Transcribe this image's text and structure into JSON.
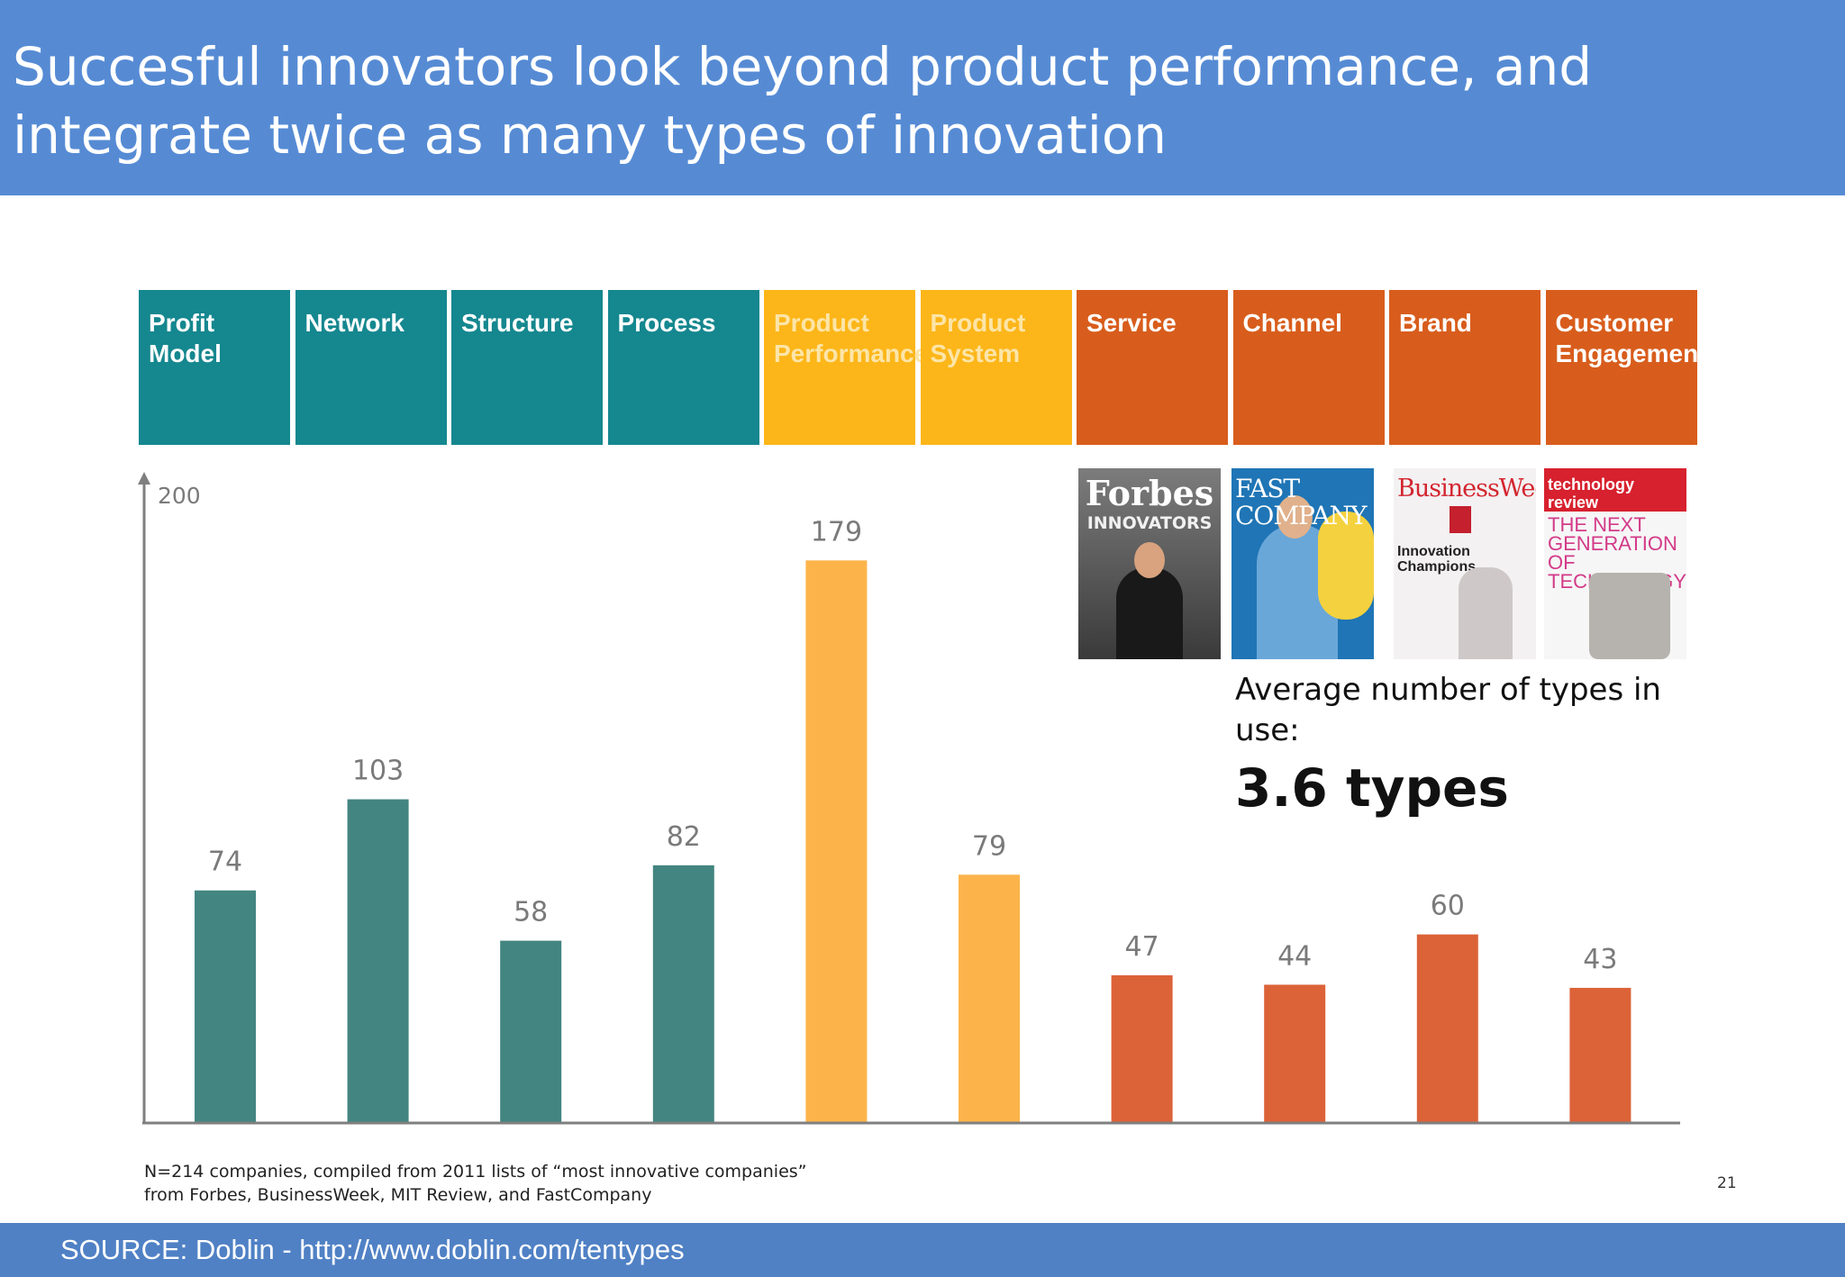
{
  "slide": {
    "title": "Succesful innovators look beyond product performance, and integrate twice as many types of innovation",
    "footnote": "N=214 companies, compiled from 2011 lists of “most innovative companies” from Forbes, BusinessWeek, MIT Review, and FastCompany",
    "page_number": "21",
    "source": "SOURCE: Doblin - http://www.doblin.com/tentypes"
  },
  "colors": {
    "title_bar": "#568bd4",
    "source_bar": "#5081c5",
    "teal_header": "#15878f",
    "yellow_header": "#fcb619",
    "orange_header": "#d85d1c",
    "teal_bar": "#438580",
    "yellow_bar": "#fcb44a",
    "orange_bar": "#dc6238"
  },
  "covers": {
    "forbes_name": "Forbes",
    "forbes_sub": "INNOVATORS",
    "fastco_name": "FAST COMPANY",
    "bizweek_name": "BusinessWeek",
    "bizweek_sub": "Innovation Champions",
    "techreview_name": "technology review",
    "techreview_headline": "THE NEXT GENERATION OF TECHNOLOGY"
  },
  "annotation": {
    "text": "Average number of types in use:",
    "value": "3.6 types"
  },
  "chart_data": {
    "type": "bar",
    "categories": [
      "Profit Model",
      "Network",
      "Structure",
      "Process",
      "Product Performance",
      "Product System",
      "Service",
      "Channel",
      "Brand",
      "Customer Engagement"
    ],
    "category_lines": [
      [
        "Profit",
        "Model"
      ],
      [
        "Network"
      ],
      [
        "Structure"
      ],
      [
        "Process"
      ],
      [
        "Product",
        "Performance"
      ],
      [
        "Product",
        "System"
      ],
      [
        "Service"
      ],
      [
        "Channel"
      ],
      [
        "Brand"
      ],
      [
        "Customer",
        "Engagement"
      ]
    ],
    "groups": [
      "teal",
      "teal",
      "teal",
      "teal",
      "yellow",
      "yellow",
      "orange",
      "orange",
      "orange",
      "orange"
    ],
    "values": [
      74,
      103,
      58,
      82,
      179,
      79,
      47,
      44,
      60,
      43
    ],
    "value_labels": [
      "74",
      "103",
      "58",
      "82",
      "179",
      "79",
      "47",
      "44",
      "60",
      "43"
    ],
    "ylim": [
      0,
      200
    ],
    "y_tick_label": "200",
    "title": "",
    "xlabel": "",
    "ylabel": "",
    "grid": false,
    "legend": "none"
  }
}
